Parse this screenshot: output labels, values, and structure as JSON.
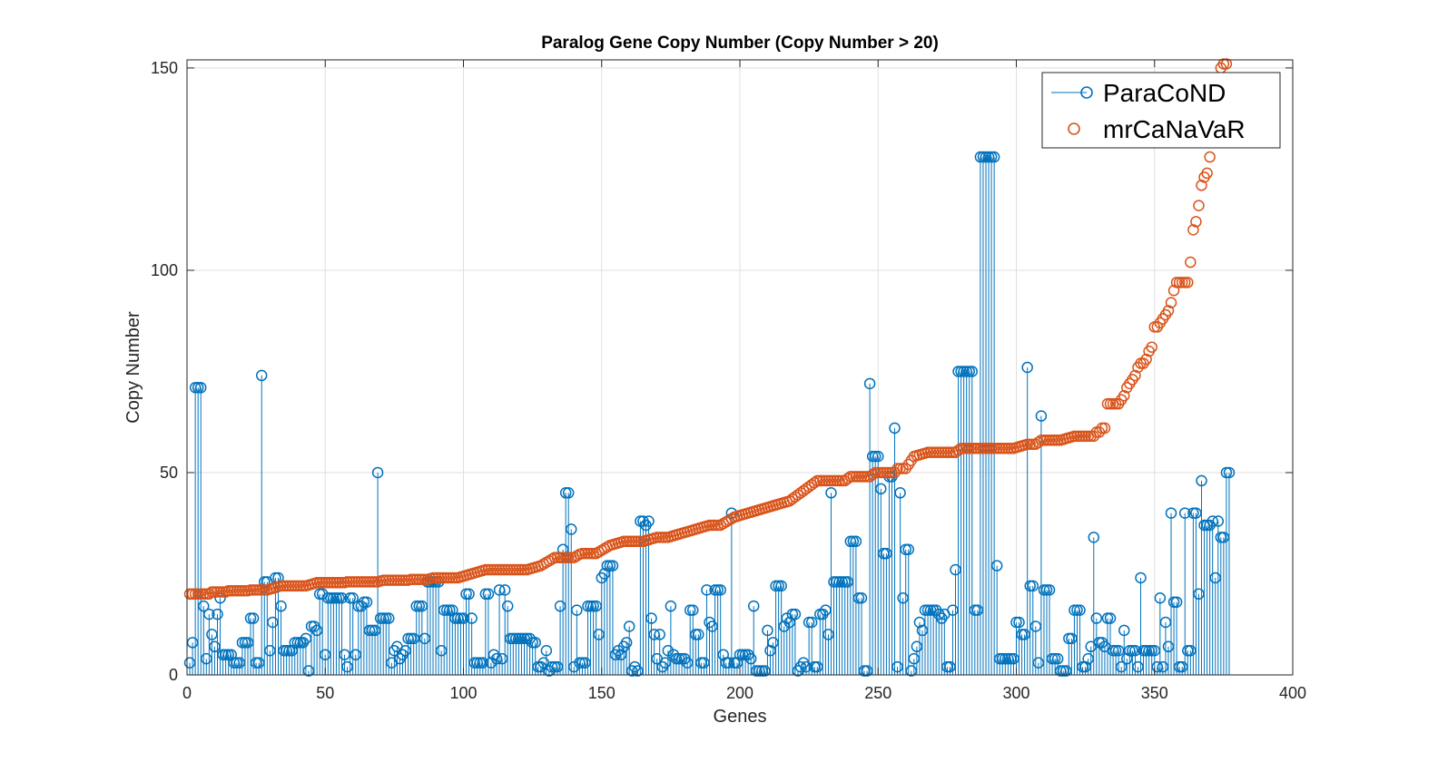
{
  "chart_data": {
    "type": "scatter",
    "title": "Paralog Gene Copy Number (Copy Number > 20)",
    "xlabel": "Genes",
    "ylabel": "Copy Number",
    "xlim": [
      0,
      400
    ],
    "ylim": [
      0,
      152
    ],
    "xticks": [
      0,
      50,
      100,
      150,
      200,
      250,
      300,
      350,
      400
    ],
    "yticks": [
      0,
      50,
      100,
      150
    ],
    "grid": true,
    "legend_position": "top-right",
    "series": [
      {
        "name": "ParaCoND",
        "style": "stem",
        "color": "#0072BD",
        "x_start": 1,
        "values": [
          3,
          8,
          71,
          71,
          71,
          17,
          4,
          15,
          10,
          7,
          15,
          19,
          5,
          5,
          5,
          5,
          3,
          3,
          3,
          8,
          8,
          8,
          14,
          14,
          3,
          3,
          74,
          23,
          23,
          6,
          13,
          24,
          24,
          17,
          6,
          6,
          6,
          6,
          8,
          8,
          8,
          8,
          9,
          1,
          12,
          12,
          11,
          20,
          20,
          5,
          19,
          19,
          19,
          19,
          19,
          19,
          5,
          2,
          19,
          19,
          5,
          17,
          17,
          18,
          18,
          11,
          11,
          11,
          50,
          14,
          14,
          14,
          14,
          3,
          6,
          7,
          4,
          5,
          6,
          9,
          9,
          9,
          17,
          17,
          17,
          9,
          23,
          23,
          23,
          23,
          23,
          6,
          16,
          16,
          16,
          16,
          14,
          14,
          14,
          14,
          20,
          20,
          14,
          3,
          3,
          3,
          3,
          20,
          20,
          3,
          5,
          4,
          21,
          4,
          21,
          17,
          9,
          9,
          9,
          9,
          9,
          9,
          9,
          9,
          8,
          8,
          2,
          2,
          3,
          6,
          1,
          2,
          2,
          2,
          17,
          31,
          45,
          45,
          36,
          2,
          16,
          3,
          3,
          3,
          17,
          17,
          17,
          17,
          10,
          24,
          25,
          27,
          27,
          27,
          5,
          6,
          5,
          7,
          8,
          12,
          1,
          2,
          1,
          38,
          38,
          37,
          38,
          14,
          10,
          4,
          10,
          2,
          3,
          6,
          17,
          5,
          4,
          4,
          4,
          4,
          3,
          16,
          16,
          10,
          10,
          3,
          3,
          21,
          13,
          12,
          21,
          21,
          21,
          5,
          3,
          3,
          40,
          3,
          3,
          5,
          5,
          5,
          5,
          4,
          17,
          1,
          1,
          1,
          1,
          11,
          6,
          8,
          22,
          22,
          22,
          12,
          14,
          13,
          15,
          15,
          1,
          2,
          3,
          2,
          13,
          13,
          2,
          2,
          15,
          15,
          16,
          10,
          45,
          23,
          23,
          23,
          23,
          23,
          23,
          33,
          33,
          33,
          19,
          19,
          1,
          1,
          72,
          54,
          54,
          54,
          46,
          30,
          30,
          49,
          49,
          61,
          2,
          45,
          19,
          31,
          31,
          1,
          4,
          7,
          13,
          11,
          16,
          16,
          16,
          16,
          16,
          15,
          14,
          15,
          2,
          2,
          16,
          26,
          75,
          75,
          75,
          75,
          75,
          75,
          16,
          16,
          128,
          128,
          128,
          128,
          128,
          128,
          27,
          4,
          4,
          4,
          4,
          4,
          4,
          13,
          13,
          10,
          10,
          76,
          22,
          22,
          12,
          3,
          64,
          21,
          21,
          21,
          4,
          4,
          4,
          1,
          1,
          1,
          9,
          9,
          16,
          16,
          16,
          2,
          2,
          4,
          7,
          34,
          14,
          8,
          8,
          7,
          14,
          14,
          6,
          6,
          6,
          2,
          11,
          4,
          6,
          6,
          6,
          2,
          24,
          6,
          6,
          6,
          6,
          6,
          2,
          19,
          2,
          13,
          7,
          40,
          18,
          18,
          2,
          2,
          40,
          6,
          6,
          40,
          40,
          20,
          48,
          37,
          37,
          37,
          38,
          24,
          38,
          34,
          34,
          50,
          50
        ]
      },
      {
        "name": "mrCaNaVaR",
        "style": "markers",
        "color": "#D95319",
        "x_start": 1,
        "values": [
          20,
          20,
          20,
          20,
          20,
          20,
          20,
          20,
          20.5,
          20.5,
          20.5,
          20.5,
          20.5,
          20.5,
          20.8,
          20.8,
          20.8,
          20.8,
          20.8,
          20.8,
          20.8,
          20.8,
          21,
          21,
          21,
          21,
          21,
          21,
          21,
          21.2,
          21.4,
          21.6,
          21.8,
          22,
          22,
          22,
          22,
          22,
          22,
          22,
          22,
          22,
          22,
          22.2,
          22.4,
          22.6,
          22.8,
          22.8,
          22.8,
          22.8,
          22.8,
          22.8,
          22.8,
          22.8,
          22.8,
          22.8,
          22.8,
          23,
          23,
          23,
          23,
          23,
          23,
          23,
          23,
          23,
          23,
          23,
          23,
          23.2,
          23.4,
          23.4,
          23.4,
          23.4,
          23.4,
          23.4,
          23.4,
          23.4,
          23.4,
          23.4,
          23.6,
          23.6,
          23.6,
          23.6,
          23.6,
          23.6,
          23.6,
          23.8,
          24,
          24,
          24,
          24,
          24,
          24,
          24,
          24,
          24,
          24,
          24.2,
          24.4,
          24.6,
          24.8,
          25,
          25.2,
          25.4,
          25.6,
          25.8,
          26,
          26,
          26,
          26,
          26,
          26,
          26,
          26,
          26,
          26,
          26,
          26,
          26,
          26,
          26,
          26,
          26.2,
          26.4,
          26.6,
          26.8,
          27,
          27.4,
          27.8,
          28.2,
          28.6,
          29,
          29,
          29,
          29,
          29,
          29,
          29,
          29,
          29.4,
          29.8,
          30,
          30,
          30,
          30,
          30,
          30,
          30.4,
          30.8,
          31.2,
          31.6,
          32,
          32.2,
          32.4,
          32.6,
          32.8,
          33,
          33,
          33,
          33,
          33,
          33,
          33,
          33,
          33.2,
          33.4,
          33.6,
          33.8,
          34,
          34,
          34,
          34,
          34,
          34.2,
          34.4,
          34.6,
          34.8,
          35,
          35.2,
          35.4,
          35.6,
          35.8,
          36,
          36.2,
          36.4,
          36.6,
          36.8,
          37,
          37,
          37,
          37,
          37,
          37.4,
          37.8,
          38.2,
          38.6,
          39,
          39.2,
          39.4,
          39.6,
          39.8,
          40,
          40.2,
          40.4,
          40.6,
          40.8,
          41,
          41.2,
          41.4,
          41.6,
          41.8,
          42,
          42.2,
          42.4,
          42.6,
          42.8,
          43,
          43.5,
          44,
          44.5,
          45,
          45.5,
          46,
          46.5,
          47,
          47.5,
          48,
          48,
          48,
          48,
          48,
          48,
          48,
          48,
          48,
          48,
          48,
          48.5,
          49,
          49,
          49,
          49,
          49,
          49,
          49,
          49,
          49.5,
          50,
          50,
          50,
          50,
          50,
          50,
          50,
          50,
          51,
          51,
          51,
          51,
          52,
          53,
          54,
          54.2,
          54.4,
          54.6,
          54.8,
          55,
          55,
          55,
          55,
          55,
          55,
          55,
          55,
          55,
          55,
          55,
          55.5,
          56,
          56,
          56,
          56,
          56,
          56,
          56,
          56,
          56,
          56,
          56,
          56,
          56,
          56,
          56,
          56,
          56,
          56,
          56,
          56,
          56.2,
          56.4,
          56.6,
          56.8,
          57,
          57,
          57,
          57,
          57.5,
          58,
          58,
          58,
          58,
          58,
          58,
          58,
          58,
          58.2,
          58.4,
          58.6,
          58.8,
          59,
          59,
          59,
          59,
          59,
          59,
          59,
          59,
          60,
          60,
          61,
          61,
          67,
          67,
          67,
          67,
          67,
          68,
          69,
          71,
          72,
          73,
          74,
          76,
          77,
          77,
          78,
          80,
          81,
          86,
          86,
          87,
          88,
          89,
          90,
          92,
          95,
          97,
          97,
          97,
          97,
          97,
          102,
          110,
          112,
          116,
          121,
          123,
          124,
          128,
          133,
          140,
          145,
          150,
          151,
          151
        ]
      }
    ]
  }
}
